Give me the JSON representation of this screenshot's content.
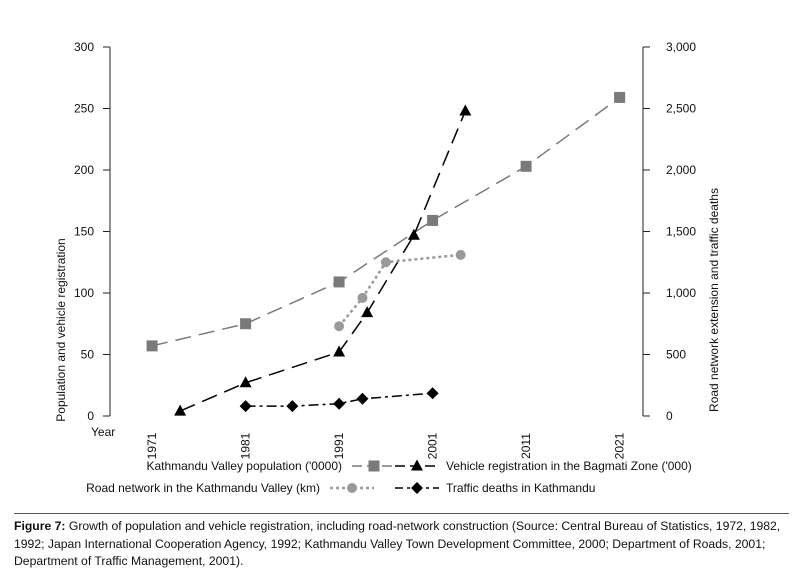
{
  "chart_data": {
    "type": "line",
    "ylabel_left": "Population and vehicle registration",
    "ylabel_right": "Road network extension and traffic deaths",
    "xlabel": "Year",
    "x_ticks": [
      1971,
      1981,
      1991,
      2001,
      2011,
      2021
    ],
    "x_range": [
      1966.5,
      2023.5
    ],
    "y_left_ticks": [
      "0",
      "50",
      "100",
      "150",
      "200",
      "250",
      "300"
    ],
    "y_left_range": [
      0,
      300
    ],
    "y_right_ticks": [
      "0",
      "500",
      "1,000",
      "1,500",
      "2,000",
      "2,500",
      "3,000"
    ],
    "y_right_range": [
      0,
      3000
    ],
    "grid": false,
    "legend_position": "bottom",
    "series": [
      {
        "name": "Kathmandu Valley population ('0000)",
        "axis": "left",
        "marker": "square",
        "dash": "long-dash",
        "color": "#7a7a7a",
        "x": [
          1971,
          1981,
          1991,
          2001,
          2011,
          2021
        ],
        "y": [
          57,
          75,
          109,
          159,
          203,
          259
        ]
      },
      {
        "name": "Vehicle registration in the Bagmati Zone ('000)",
        "axis": "left",
        "marker": "triangle",
        "dash": "long-dash",
        "color": "#000000",
        "x": [
          1974,
          1981,
          1991,
          1994,
          1999,
          2004.5
        ],
        "y": [
          4,
          27,
          52,
          84,
          147,
          248
        ]
      },
      {
        "name": "Road network in the Kathmandu Valley (km)",
        "axis": "right",
        "marker": "circle",
        "dash": "dotted",
        "color": "#9a9a9a",
        "x": [
          1991,
          1993.5,
          1996,
          2004
        ],
        "y": [
          730,
          960,
          1250,
          1310
        ]
      },
      {
        "name": "Traffic deaths in Kathmandu",
        "axis": "right",
        "marker": "diamond",
        "dash": "dash-dot",
        "color": "#000000",
        "x": [
          1981,
          1986,
          1991,
          1993.5,
          2001
        ],
        "y": [
          80,
          80,
          100,
          140,
          185
        ]
      }
    ]
  },
  "caption": {
    "label": "Figure 7:",
    "text": " Growth of population and vehicle registration, including road-network construction (Source: Central Bureau of Statistics, 1972, 1982, 1992; Japan International Cooperation Agency, 1992; Kathmandu Valley Town Development Committee, 2000; Department of Roads, 2001; Department of Traffic Management, 2001)."
  }
}
